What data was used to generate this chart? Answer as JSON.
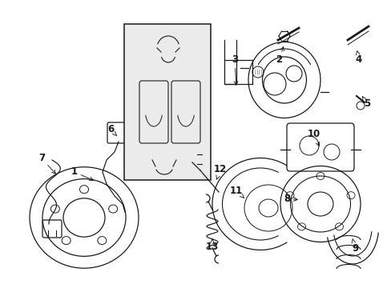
{
  "bg_color": "#ffffff",
  "line_color": "#1a1a1a",
  "box_fill": "#ebebeb",
  "fig_w": 4.89,
  "fig_h": 3.6,
  "dpi": 100
}
